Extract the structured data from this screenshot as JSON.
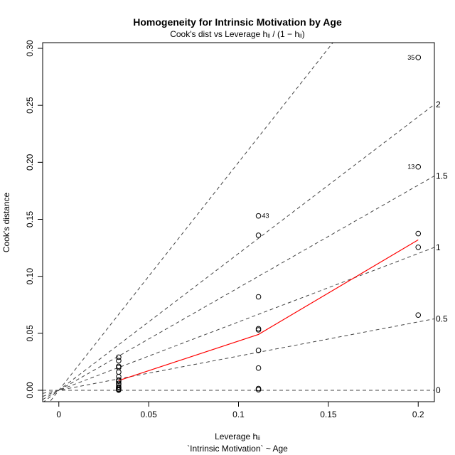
{
  "chart_data": {
    "type": "scatter",
    "title": "Homogeneity for Intrinsic Motivation by Age",
    "subtitle": "Cook's dist vs Leverage  hᵢᵢ / (1 − hᵢᵢ)",
    "xlabel": "Leverage  hᵢᵢ",
    "ylabel": "Cook's distance",
    "footer": "`Intrinsic Motivation` ~ Age",
    "xlim": [
      -0.009,
      0.209
    ],
    "ylim": [
      -0.01,
      0.305
    ],
    "x_ticks": [
      {
        "v": 0,
        "label": "0"
      },
      {
        "v": 0.05,
        "label": "0.05"
      },
      {
        "v": 0.1,
        "label": "0.1"
      },
      {
        "v": 0.15,
        "label": "0.15"
      },
      {
        "v": 0.2,
        "label": "0.2"
      }
    ],
    "y_ticks": [
      {
        "v": 0,
        "label": "0.00"
      },
      {
        "v": 0.05,
        "label": "0.05"
      },
      {
        "v": 0.1,
        "label": "0.10"
      },
      {
        "v": 0.15,
        "label": "0.15"
      },
      {
        "v": 0.2,
        "label": "0.20"
      },
      {
        "v": 0.25,
        "label": "0.25"
      },
      {
        "v": 0.3,
        "label": "0.30"
      }
    ],
    "points": [
      {
        "x": 0.0333,
        "y": 0.029
      },
      {
        "x": 0.0333,
        "y": 0.026
      },
      {
        "x": 0.0333,
        "y": 0.021
      },
      {
        "x": 0.0333,
        "y": 0.02
      },
      {
        "x": 0.0333,
        "y": 0.016
      },
      {
        "x": 0.0333,
        "y": 0.012
      },
      {
        "x": 0.0333,
        "y": 0.009
      },
      {
        "x": 0.0333,
        "y": 0.008
      },
      {
        "x": 0.0333,
        "y": 0.006
      },
      {
        "x": 0.0333,
        "y": 0.005
      },
      {
        "x": 0.0333,
        "y": 0.003
      },
      {
        "x": 0.0333,
        "y": 0.002
      },
      {
        "x": 0.0333,
        "y": 0.001
      },
      {
        "x": 0.0333,
        "y": 0.0005
      },
      {
        "x": 0.0333,
        "y": 0.0002
      },
      {
        "x": 0.1111,
        "y": 0.153,
        "label": "43"
      },
      {
        "x": 0.1111,
        "y": 0.136
      },
      {
        "x": 0.1111,
        "y": 0.082
      },
      {
        "x": 0.1111,
        "y": 0.054
      },
      {
        "x": 0.1111,
        "y": 0.053
      },
      {
        "x": 0.1111,
        "y": 0.035
      },
      {
        "x": 0.1111,
        "y": 0.0195
      },
      {
        "x": 0.1111,
        "y": 0.0015
      },
      {
        "x": 0.1111,
        "y": 0.0005
      },
      {
        "x": 0.2,
        "y": 0.292,
        "label": "35"
      },
      {
        "x": 0.2,
        "y": 0.196,
        "label": "13"
      },
      {
        "x": 0.2,
        "y": 0.1375
      },
      {
        "x": 0.2,
        "y": 0.1255
      },
      {
        "x": 0.2,
        "y": 0.066
      }
    ],
    "smooth_line": [
      {
        "x": 0.0333,
        "y": 0.0085
      },
      {
        "x": 0.1111,
        "y": 0.049
      },
      {
        "x": 0.2,
        "y": 0.132
      }
    ],
    "smooth_color": "#ff0000",
    "contour_lines": [
      {
        "label": "0",
        "slope": 0
      },
      {
        "label": "0.5",
        "slope": 0.3
      },
      {
        "label": "1",
        "slope": 0.6
      },
      {
        "label": "1.5",
        "slope": 0.9
      },
      {
        "label": "2",
        "slope": 1.2
      },
      {
        "label": "",
        "slope": 2.0
      }
    ]
  }
}
